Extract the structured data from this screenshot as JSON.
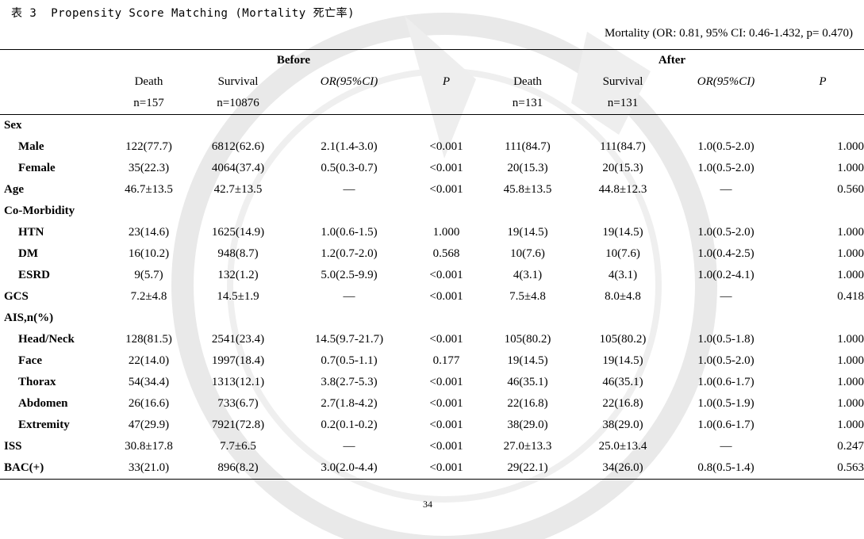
{
  "caption": "表 3  Propensity Score Matching (Mortality 死亡率)",
  "subtitle": "Mortality (OR: 0.81, 95% CI: 0.46-1.432, p= 0.470)",
  "groups": {
    "before": "Before",
    "after": "After"
  },
  "headers": {
    "death": "Death",
    "survival": "Survival",
    "or": "OR(95%CI)",
    "p": "P",
    "before_death_n": "n=157",
    "before_survival_n": "n=10876",
    "after_death_n": "n=131",
    "after_survival_n": "n=131"
  },
  "rows": [
    {
      "label": "Sex",
      "sub": false,
      "values": [
        "",
        "",
        "",
        "",
        "",
        "",
        "",
        ""
      ]
    },
    {
      "label": "Male",
      "sub": true,
      "values": [
        "122(77.7)",
        "6812(62.6)",
        "2.1(1.4-3.0)",
        "<0.001",
        "111(84.7)",
        "111(84.7)",
        "1.0(0.5-2.0)",
        "1.000"
      ]
    },
    {
      "label": "Female",
      "sub": true,
      "values": [
        "35(22.3)",
        "4064(37.4)",
        "0.5(0.3-0.7)",
        "<0.001",
        "20(15.3)",
        "20(15.3)",
        "1.0(0.5-2.0)",
        "1.000"
      ]
    },
    {
      "label": "Age",
      "sub": false,
      "values": [
        "46.7±13.5",
        "42.7±13.5",
        "—",
        "<0.001",
        "45.8±13.5",
        "44.8±12.3",
        "—",
        "0.560"
      ]
    },
    {
      "label": "Co-Morbidity",
      "sub": false,
      "values": [
        "",
        "",
        "",
        "",
        "",
        "",
        "",
        ""
      ]
    },
    {
      "label": "HTN",
      "sub": true,
      "values": [
        "23(14.6)",
        "1625(14.9)",
        "1.0(0.6-1.5)",
        "1.000",
        "19(14.5)",
        "19(14.5)",
        "1.0(0.5-2.0)",
        "1.000"
      ]
    },
    {
      "label": "DM",
      "sub": true,
      "values": [
        "16(10.2)",
        "948(8.7)",
        "1.2(0.7-2.0)",
        "0.568",
        "10(7.6)",
        "10(7.6)",
        "1.0(0.4-2.5)",
        "1.000"
      ]
    },
    {
      "label": "ESRD",
      "sub": true,
      "values": [
        "9(5.7)",
        "132(1.2)",
        "5.0(2.5-9.9)",
        "<0.001",
        "4(3.1)",
        "4(3.1)",
        "1.0(0.2-4.1)",
        "1.000"
      ]
    },
    {
      "label": "GCS",
      "sub": false,
      "values": [
        "7.2±4.8",
        "14.5±1.9",
        "—",
        "<0.001",
        "7.5±4.8",
        "8.0±4.8",
        "—",
        "0.418"
      ]
    },
    {
      "label": "AIS,n(%)",
      "sub": false,
      "values": [
        "",
        "",
        "",
        "",
        "",
        "",
        "",
        ""
      ]
    },
    {
      "label": "Head/Neck",
      "sub": true,
      "values": [
        "128(81.5)",
        "2541(23.4)",
        "14.5(9.7-21.7)",
        "<0.001",
        "105(80.2)",
        "105(80.2)",
        "1.0(0.5-1.8)",
        "1.000"
      ]
    },
    {
      "label": "Face",
      "sub": true,
      "values": [
        "22(14.0)",
        "1997(18.4)",
        "0.7(0.5-1.1)",
        "0.177",
        "19(14.5)",
        "19(14.5)",
        "1.0(0.5-2.0)",
        "1.000"
      ]
    },
    {
      "label": "Thorax",
      "sub": true,
      "values": [
        "54(34.4)",
        "1313(12.1)",
        "3.8(2.7-5.3)",
        "<0.001",
        "46(35.1)",
        "46(35.1)",
        "1.0(0.6-1.7)",
        "1.000"
      ]
    },
    {
      "label": "Abdomen",
      "sub": true,
      "values": [
        "26(16.6)",
        "733(6.7)",
        "2.7(1.8-4.2)",
        "<0.001",
        "22(16.8)",
        "22(16.8)",
        "1.0(0.5-1.9)",
        "1.000"
      ]
    },
    {
      "label": "Extremity",
      "sub": true,
      "values": [
        "47(29.9)",
        "7921(72.8)",
        "0.2(0.1-0.2)",
        "<0.001",
        "38(29.0)",
        "38(29.0)",
        "1.0(0.6-1.7)",
        "1.000"
      ]
    },
    {
      "label": "ISS",
      "sub": false,
      "values": [
        "30.8±17.8",
        "7.7±6.5",
        "—",
        "<0.001",
        "27.0±13.3",
        "25.0±13.4",
        "—",
        "0.247"
      ]
    },
    {
      "label": "BAC(+)",
      "sub": false,
      "values": [
        "33(21.0)",
        "896(8.2)",
        "3.0(2.0-4.4)",
        "<0.001",
        "29(22.1)",
        "34(26.0)",
        "0.8(0.5-1.4)",
        "0.563"
      ]
    }
  ],
  "page_number": "34"
}
